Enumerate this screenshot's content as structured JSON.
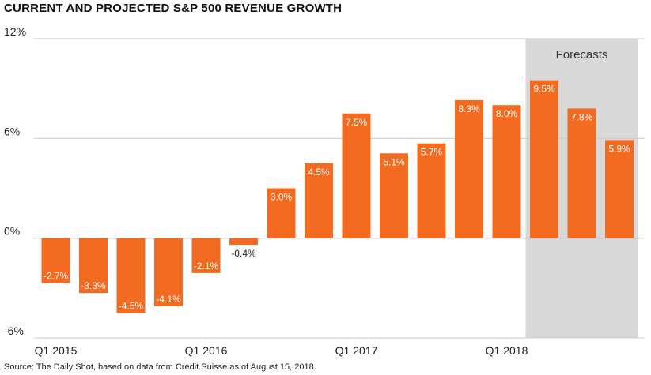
{
  "chart_data": {
    "type": "bar",
    "title": "CURRENT AND PROJECTED S&P 500 REVENUE GROWTH",
    "source": "Source: The Daily Shot, based on data from Credit Suisse as of August 15, 2018.",
    "values": [
      -2.7,
      -3.3,
      -4.5,
      -4.1,
      -2.1,
      -0.4,
      3.0,
      4.5,
      7.5,
      5.1,
      5.7,
      8.3,
      8.0,
      9.5,
      7.8,
      5.9
    ],
    "value_labels": [
      "-2.7%",
      "-3.3%",
      "-4.5%",
      "-4.1%",
      "-2.1%",
      "-0.4%",
      "3.0%",
      "4.5%",
      "7.5%",
      "5.1%",
      "5.7%",
      "8.3%",
      "8.0%",
      "9.5%",
      "7.8%",
      "5.9%"
    ],
    "x_tick_labels": [
      {
        "index": 0,
        "label": "Q1 2015"
      },
      {
        "index": 4,
        "label": "Q1 2016"
      },
      {
        "index": 8,
        "label": "Q1 2017"
      },
      {
        "index": 12,
        "label": "Q1 2018"
      }
    ],
    "y_ticks": [
      {
        "value": 12,
        "label": "12%"
      },
      {
        "value": 6,
        "label": "6%"
      },
      {
        "value": 0,
        "label": "0%"
      },
      {
        "value": -6,
        "label": "-6%"
      }
    ],
    "ylim": [
      -6,
      12
    ],
    "forecast": {
      "label": "Forecasts",
      "start_index": 13,
      "end_index": 15
    },
    "grid": true,
    "colors": {
      "bar": "#f26b21",
      "forecast_band": "#d9d9d9",
      "grid": "#cccccc",
      "axis": "#999999"
    }
  }
}
